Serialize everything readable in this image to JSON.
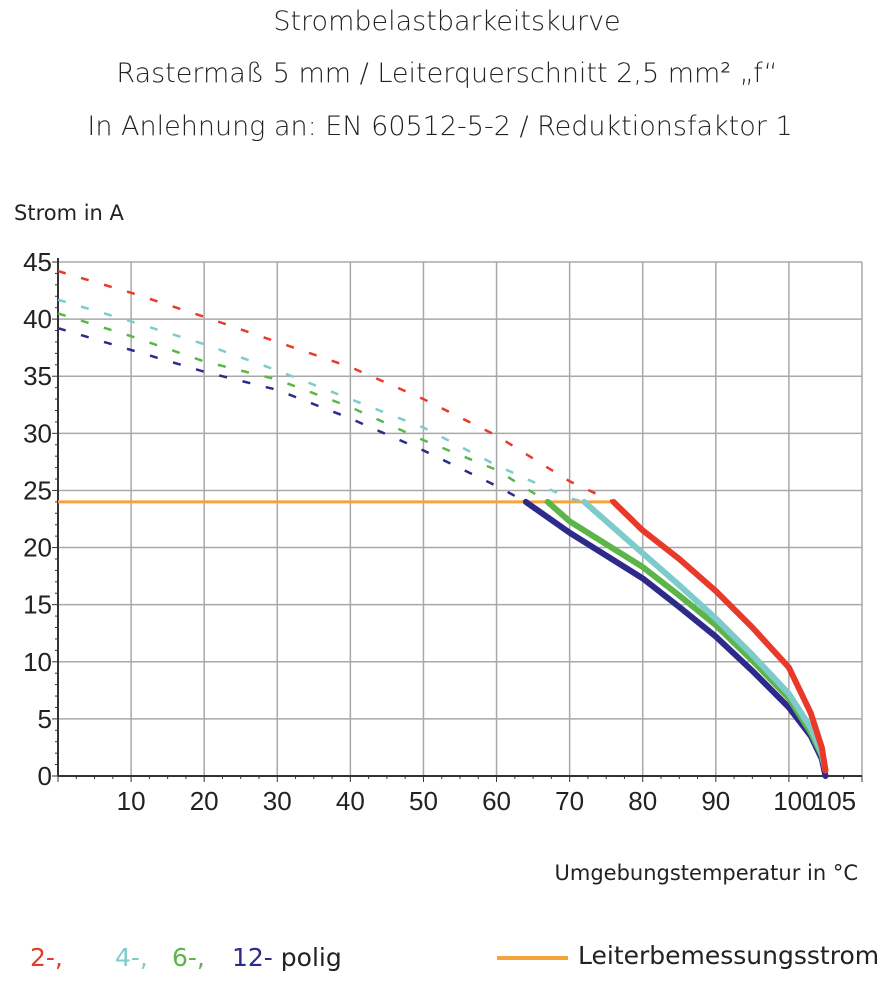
{
  "chart_data": {
    "type": "line",
    "title": [
      "Strombelastbarkeitskurve",
      "Rastermaß 5 mm / Leiterquerschnitt 2,5 mm² „f“",
      "In Anlehnung an: EN 60512-5-2 / Reduktionsfaktor 1"
    ],
    "xlabel": "Umgebungstemperatur in °C",
    "ylabel": "Strom in A",
    "xlim": [
      0,
      110
    ],
    "ylim": [
      0,
      45
    ],
    "xticks": [
      10,
      20,
      30,
      40,
      50,
      60,
      70,
      80,
      90,
      100,
      105
    ],
    "xgrid": [
      10,
      20,
      30,
      40,
      50,
      60,
      70,
      80,
      90,
      100
    ],
    "yticks": [
      0,
      5,
      10,
      15,
      20,
      25,
      30,
      35,
      40,
      45
    ],
    "grid": true,
    "legend_placement": "bottom",
    "series": [
      {
        "name": "2-",
        "color": "#e8392a",
        "dashed": [
          [
            0,
            44.2
          ],
          [
            10,
            42.3
          ],
          [
            20,
            40.2
          ],
          [
            30,
            38
          ],
          [
            40,
            35.8
          ],
          [
            50,
            33
          ],
          [
            60,
            29.8
          ],
          [
            70,
            25.8
          ],
          [
            76,
            24
          ]
        ],
        "solid": [
          [
            76,
            24
          ],
          [
            80,
            21.5
          ],
          [
            85,
            19
          ],
          [
            90,
            16.2
          ],
          [
            95,
            13
          ],
          [
            100,
            9.5
          ],
          [
            103,
            5.5
          ],
          [
            104.5,
            2.5
          ],
          [
            105,
            0.5
          ]
        ]
      },
      {
        "name": "4-",
        "color": "#7ecbcc",
        "dashed": [
          [
            0,
            41.7
          ],
          [
            10,
            39.8
          ],
          [
            20,
            37.8
          ],
          [
            30,
            35.5
          ],
          [
            40,
            33
          ],
          [
            50,
            30.5
          ],
          [
            60,
            27.2
          ],
          [
            70,
            24.3
          ],
          [
            72,
            24
          ]
        ],
        "solid": [
          [
            72,
            24
          ],
          [
            80,
            19.5
          ],
          [
            85,
            16.7
          ],
          [
            90,
            13.8
          ],
          [
            95,
            10.6
          ],
          [
            100,
            7.2
          ],
          [
            103,
            4.2
          ],
          [
            104.5,
            2
          ],
          [
            105,
            0.5
          ]
        ]
      },
      {
        "name": "6-",
        "color": "#5db54a",
        "dashed": [
          [
            0,
            40.5
          ],
          [
            10,
            38.5
          ],
          [
            20,
            36.3
          ],
          [
            30,
            34.7
          ],
          [
            40,
            32.3
          ],
          [
            50,
            29.4
          ],
          [
            60,
            26.8
          ],
          [
            67,
            24
          ]
        ],
        "solid": [
          [
            67,
            24
          ],
          [
            70,
            22.3
          ],
          [
            80,
            18.3
          ],
          [
            85,
            15.8
          ],
          [
            90,
            13.2
          ],
          [
            95,
            10.1
          ],
          [
            100,
            6.8
          ],
          [
            103,
            3.8
          ],
          [
            104.5,
            1.8
          ],
          [
            105,
            0.5
          ]
        ]
      },
      {
        "name": "12-",
        "color": "#2d2a8a",
        "dashed": [
          [
            0,
            39.2
          ],
          [
            10,
            37.3
          ],
          [
            20,
            35.4
          ],
          [
            30,
            33.8
          ],
          [
            40,
            31.3
          ],
          [
            50,
            28.5
          ],
          [
            60,
            25.4
          ],
          [
            64,
            24
          ]
        ],
        "solid": [
          [
            64,
            24
          ],
          [
            70,
            21.3
          ],
          [
            80,
            17.3
          ],
          [
            85,
            14.8
          ],
          [
            90,
            12.2
          ],
          [
            95,
            9.2
          ],
          [
            100,
            6
          ],
          [
            103,
            3.5
          ],
          [
            104.5,
            1.5
          ],
          [
            105,
            0
          ]
        ]
      }
    ],
    "reference_line": {
      "name": "Leiterbemessungsstrom",
      "color": "#f5a33a",
      "y": 24,
      "x": [
        0,
        76
      ]
    },
    "legend": {
      "suffix": "polig",
      "labels": [
        "2-,",
        "4-,",
        "6-,",
        "12-"
      ],
      "reference_label": "Leiterbemessungsstrom"
    }
  }
}
